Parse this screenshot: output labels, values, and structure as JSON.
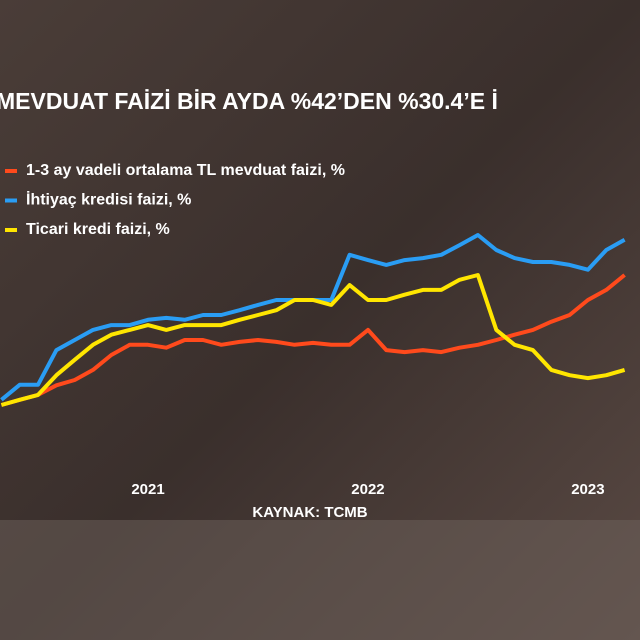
{
  "chart_data": {
    "type": "line",
    "title": "MEVDUAT FAİZİ BİR AYDA %42’DEN %30.4’E İ",
    "source": "KAYNAK: TCMB",
    "categories": [
      null,
      null,
      null,
      null,
      null,
      null,
      null,
      null,
      "2021",
      null,
      null,
      null,
      null,
      null,
      null,
      null,
      null,
      null,
      null,
      null,
      "2022",
      null,
      null,
      null,
      null,
      null,
      null,
      null,
      null,
      null,
      null,
      null,
      "2023",
      null,
      null
    ],
    "ylim": [
      0,
      60
    ],
    "series": [
      {
        "name": "1-3 ay vadeli ortalama TL mevduat faizi, %",
        "color": "#ff4a1c",
        "values": [
          13.9,
          15,
          16,
          18,
          19.1,
          21.2,
          24.3,
          26.4,
          26.4,
          25.8,
          27.4,
          27.4,
          26.4,
          27,
          27.4,
          27,
          26.4,
          26.8,
          26.4,
          26.4,
          29.5,
          25.3,
          24.9,
          25.3,
          24.9,
          25.8,
          26.4,
          27.4,
          28.5,
          29.5,
          31.2,
          32.6,
          35.7,
          37.8,
          40.9
        ]
      },
      {
        "name": "İhtiyaç kredisi faizi, %",
        "color": "#2a9df4",
        "values": [
          15,
          18.1,
          18.1,
          25.3,
          27.4,
          29.5,
          30.5,
          30.5,
          31.6,
          32,
          31.6,
          32.6,
          32.6,
          33.6,
          34.7,
          35.7,
          35.7,
          35.7,
          35.7,
          45.1,
          44,
          43,
          44,
          44.4,
          45.1,
          47.1,
          49.2,
          46.1,
          44.4,
          43.6,
          43.6,
          43,
          42,
          46.1,
          48.2
        ]
      },
      {
        "name": "Ticari kredi faizi, %",
        "color": "#ffe600",
        "values": [
          13.9,
          15,
          16,
          20.1,
          23.3,
          26.4,
          28.5,
          29.5,
          30.5,
          29.5,
          30.5,
          30.5,
          30.5,
          31.6,
          32.6,
          33.6,
          35.7,
          35.7,
          34.7,
          38.8,
          35.7,
          35.7,
          36.8,
          37.8,
          37.8,
          39.9,
          40.9,
          29.5,
          26.4,
          25.3,
          21.2,
          20.1,
          19.5,
          20.1,
          21.2
        ]
      }
    ]
  }
}
